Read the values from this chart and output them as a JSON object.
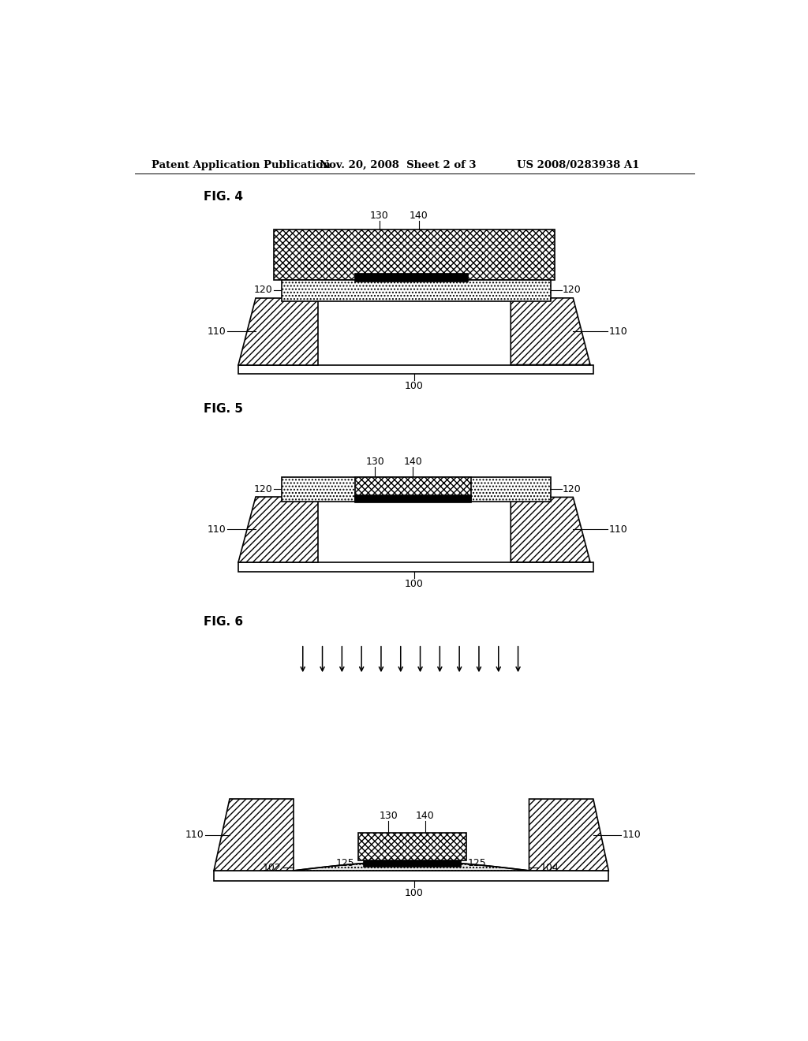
{
  "header_left": "Patent Application Publication",
  "header_mid": "Nov. 20, 2008  Sheet 2 of 3",
  "header_right": "US 2008/0283938 A1",
  "fig4_label": "FIG. 4",
  "fig5_label": "FIG. 5",
  "fig6_label": "FIG. 6",
  "bg_color": "#ffffff",
  "line_color": "#000000"
}
